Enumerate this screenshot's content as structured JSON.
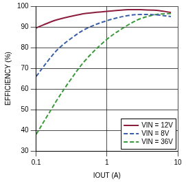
{
  "chart_data": {
    "type": "line",
    "x_label": "IOUT (A)",
    "y_label": "EFFICIENCY (%)",
    "log": "x",
    "xlim": [
      0.1,
      10
    ],
    "xticks": [
      0.1,
      1,
      10
    ],
    "ylim": [
      30,
      100
    ],
    "yticks": [
      30,
      40,
      50,
      60,
      70,
      80,
      90,
      100
    ],
    "grid": true,
    "legend": "bottom-right",
    "series": [
      {
        "name": "VIN = 12V",
        "color": "#8b1c3c",
        "line_style": "solid",
        "x": [
          0.1,
          0.15,
          0.2,
          0.3,
          0.5,
          1,
          2,
          3,
          5,
          8
        ],
        "values": [
          89.5,
          92,
          93.5,
          95,
          96.5,
          97.5,
          98.3,
          98.3,
          98,
          97
        ]
      },
      {
        "name": "VIN = 8V",
        "color": "#3a5fa8",
        "line_style": "dashed",
        "x": [
          0.1,
          0.15,
          0.2,
          0.3,
          0.5,
          1,
          2,
          3,
          5,
          8
        ],
        "values": [
          66,
          74,
          79,
          84,
          89,
          93,
          95.5,
          96,
          95.8,
          95
        ]
      },
      {
        "name": "VIN = 36V",
        "color": "#3a9a3a",
        "line_style": "dashed",
        "x": [
          0.1,
          0.15,
          0.2,
          0.3,
          0.5,
          1,
          2,
          3,
          5,
          8
        ],
        "values": [
          38,
          48,
          55,
          64,
          74,
          84,
          91,
          94,
          96,
          96.5
        ]
      }
    ]
  }
}
